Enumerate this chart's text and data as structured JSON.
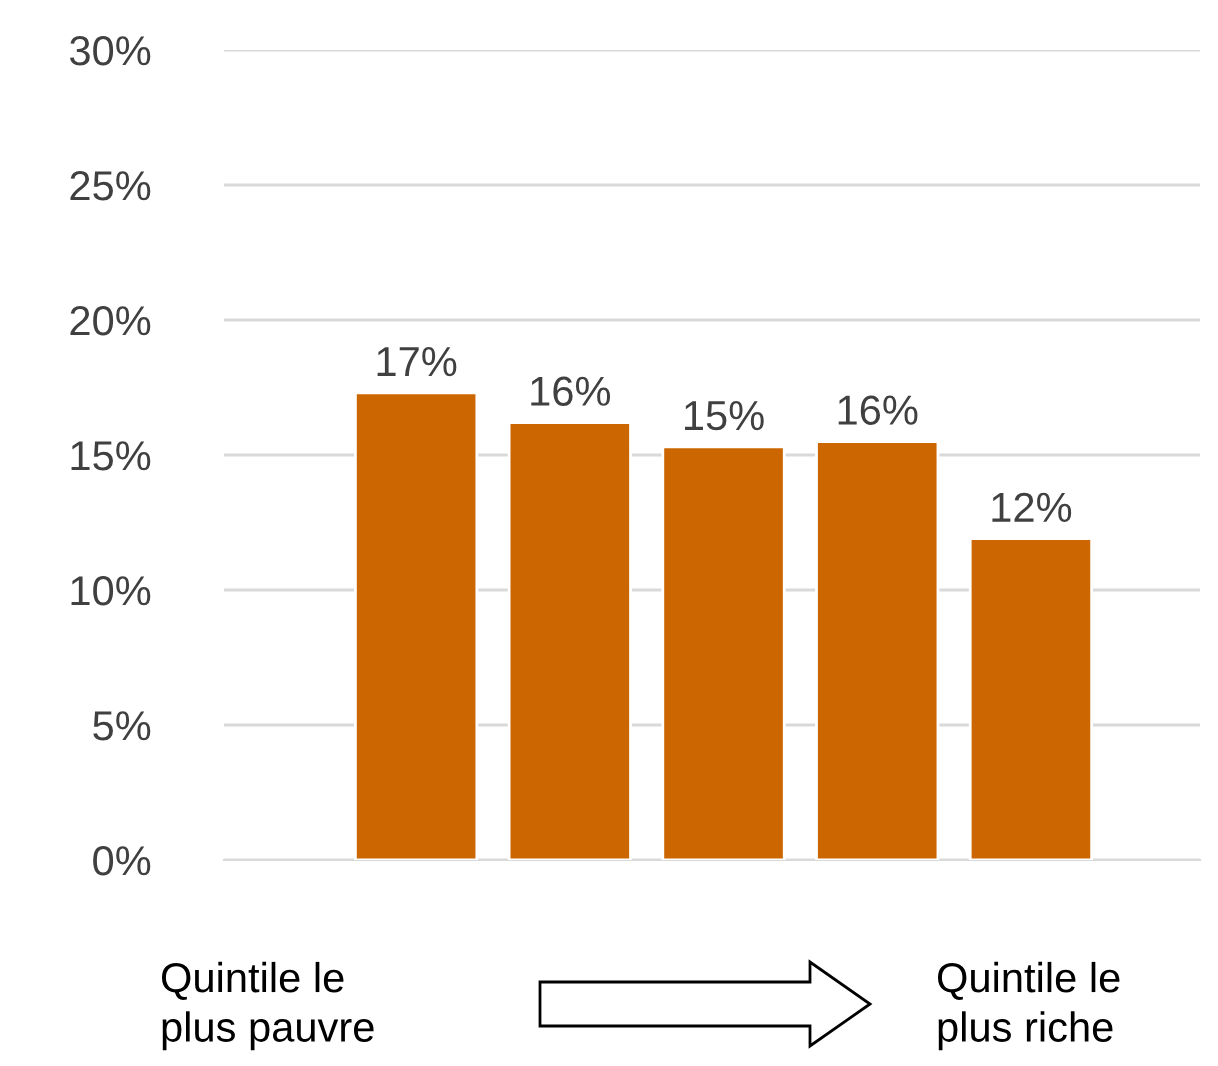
{
  "chart_data": {
    "type": "bar",
    "categories": [
      null,
      null,
      null,
      null,
      null
    ],
    "values": [
      17.3,
      16.2,
      15.3,
      15.5,
      11.9
    ],
    "value_labels": [
      "17%",
      "16%",
      "15%",
      "16%",
      "12%"
    ],
    "color": "#cc6600",
    "ylim": [
      0,
      30
    ],
    "yticks": [
      {
        "value": 0,
        "label": "0%"
      },
      {
        "value": 5,
        "label": "5%"
      },
      {
        "value": 10,
        "label": "10%"
      },
      {
        "value": 15,
        "label": "15%"
      },
      {
        "value": 20,
        "label": "20%"
      },
      {
        "value": 25,
        "label": "25%"
      },
      {
        "value": 30,
        "label": "30%"
      }
    ],
    "grid": "y",
    "annotations": [
      "Quintile le\nplus pauvre",
      "Quintile le\nplus riche"
    ]
  }
}
